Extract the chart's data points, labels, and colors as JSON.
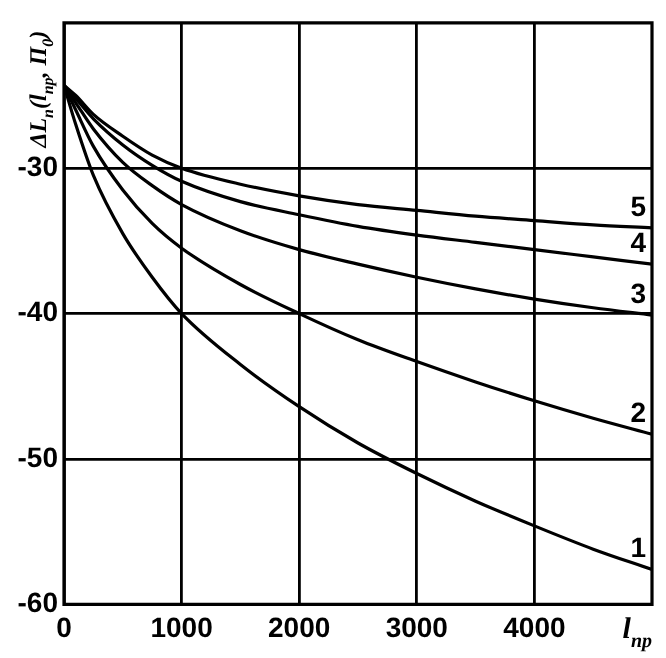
{
  "chart_data": {
    "type": "line",
    "xlabel": "l$_{пр}$",
    "ylabel": "ΔL$_{п}$(l$_{пр}$, П$_{0}$)",
    "xlim": [
      0,
      5000
    ],
    "ylim": [
      -60,
      -20
    ],
    "xticks": [
      0,
      1000,
      2000,
      3000,
      4000
    ],
    "yticks": [
      -60,
      -50,
      -40,
      -30
    ],
    "grid": true,
    "legend": false,
    "marker": "none",
    "line_style": "solid",
    "x": [
      0,
      100,
      250,
      500,
      750,
      1000,
      1500,
      2000,
      2500,
      3000,
      3500,
      4000,
      4500,
      5000
    ],
    "series": [
      {
        "name": "1",
        "color": "#000000",
        "values": [
          -24.3,
          -27,
          -30.5,
          -34.5,
          -37.5,
          -40,
          -43.5,
          -46.4,
          -48.9,
          -51,
          -52.9,
          -54.6,
          -56.2,
          -57.6
        ]
      },
      {
        "name": "2",
        "color": "#000000",
        "values": [
          -24.3,
          -26,
          -28.5,
          -31.5,
          -33.8,
          -35.5,
          -38,
          -40,
          -41.8,
          -43.3,
          -44.7,
          -46,
          -47.2,
          -48.3
        ]
      },
      {
        "name": "3",
        "color": "#000000",
        "values": [
          -24.3,
          -25.5,
          -27.3,
          -29.6,
          -31.2,
          -32.5,
          -34.3,
          -35.6,
          -36.6,
          -37.5,
          -38.3,
          -39,
          -39.6,
          -40.1
        ]
      },
      {
        "name": "4",
        "color": "#000000",
        "values": [
          -24.3,
          -25.2,
          -26.6,
          -28.4,
          -29.8,
          -30.9,
          -32.3,
          -33.2,
          -34,
          -34.6,
          -35.1,
          -35.6,
          -36.1,
          -36.6
        ]
      },
      {
        "name": "5",
        "color": "#000000",
        "values": [
          -24.3,
          -25,
          -26.3,
          -27.8,
          -29.1,
          -30,
          -31.1,
          -31.9,
          -32.5,
          -32.9,
          -33.3,
          -33.6,
          -33.9,
          -34.1
        ]
      }
    ]
  }
}
